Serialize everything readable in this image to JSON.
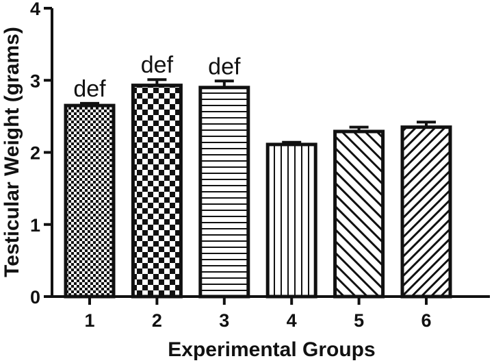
{
  "chart_data": {
    "type": "bar",
    "title": "",
    "xlabel": "Experimental Groups",
    "ylabel": "Testicular Weight (grams)",
    "ylim": [
      0,
      4
    ],
    "yticks": [
      "0",
      "1",
      "2",
      "3",
      "4"
    ],
    "categories": [
      "1",
      "2",
      "3",
      "4",
      "5",
      "6"
    ],
    "values": [
      2.65,
      2.93,
      2.9,
      2.11,
      2.29,
      2.35
    ],
    "errors": [
      0.03,
      0.08,
      0.09,
      0.03,
      0.06,
      0.07
    ],
    "annotations": [
      "def",
      "def",
      "def",
      "",
      "",
      ""
    ],
    "patterns": [
      "fine-checker",
      "coarse-checker",
      "horizontal-lines",
      "vertical-lines",
      "diagonal-lines",
      "diagonal-lines-dense"
    ],
    "grid": false,
    "legend": "none"
  }
}
